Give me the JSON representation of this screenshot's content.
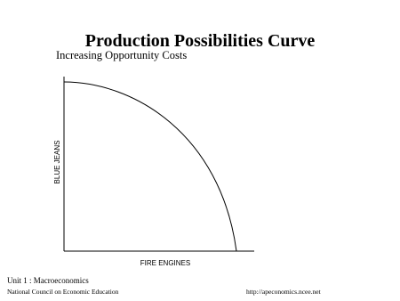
{
  "header": {
    "title": "Production Possibilities Curve",
    "subtitle": "Increasing Opportunity Costs"
  },
  "diagram": {
    "y_axis_label": "BLUE JEANS",
    "x_axis_label": "FIRE ENGINES"
  },
  "footer": {
    "unit": "Unit 1 : Macroeconomics",
    "organization": "National Council on Economic Education",
    "url": "http://apeconomics.ncee.net"
  }
}
